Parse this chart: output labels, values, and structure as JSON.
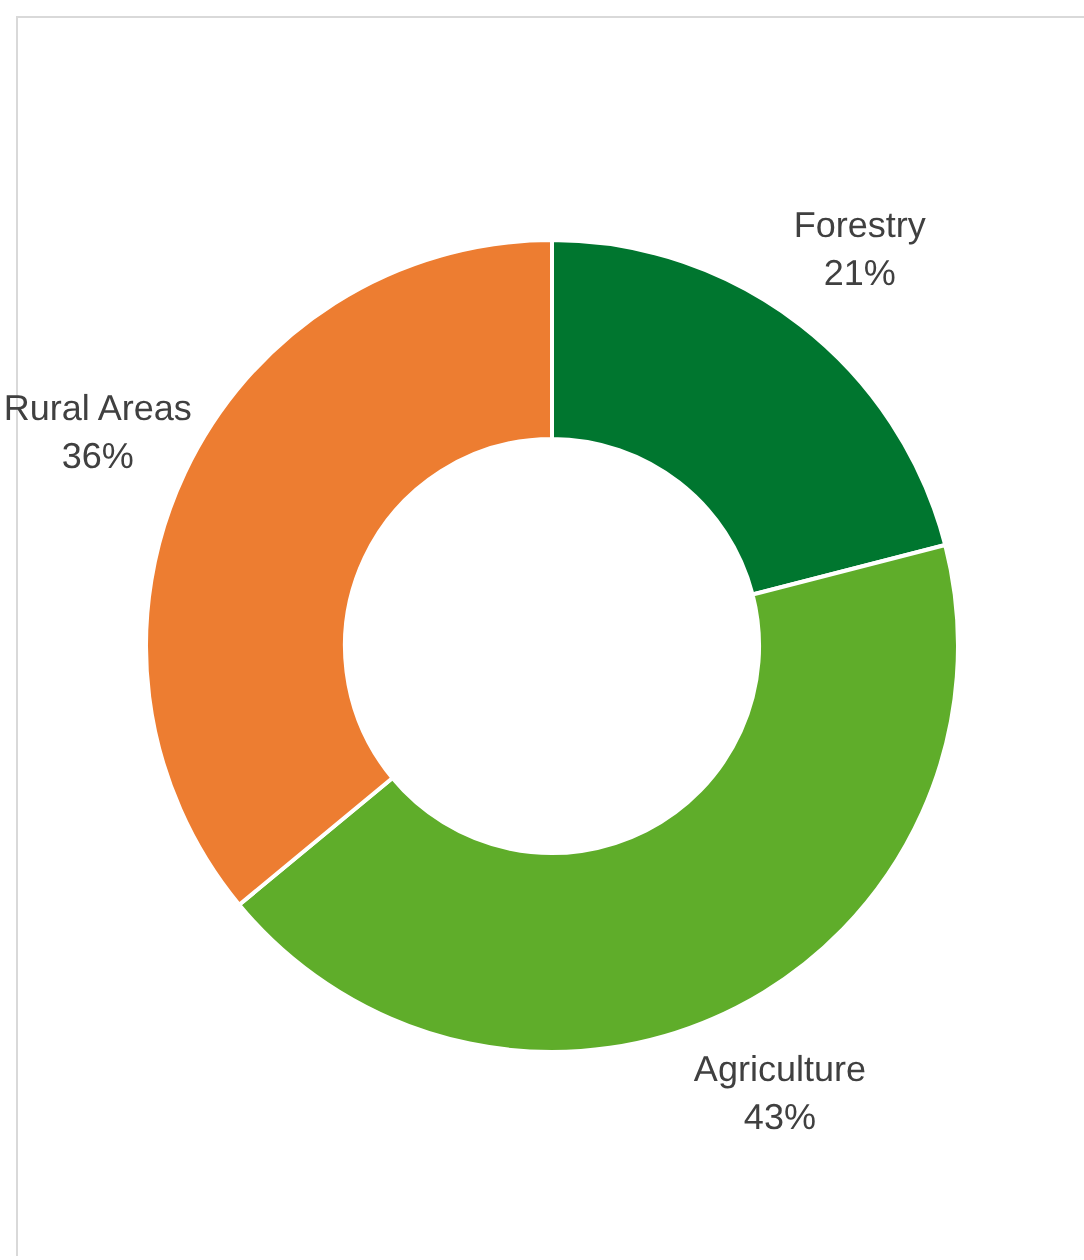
{
  "chart_data": {
    "type": "donut",
    "categories": [
      "Forestry",
      "Agriculture",
      "Rural Areas"
    ],
    "values": [
      21,
      43,
      36
    ],
    "colors": [
      "#00762f",
      "#5fad2a",
      "#ed7d31"
    ],
    "value_labels": [
      "21%",
      "43%",
      "36%"
    ],
    "legend": false
  }
}
